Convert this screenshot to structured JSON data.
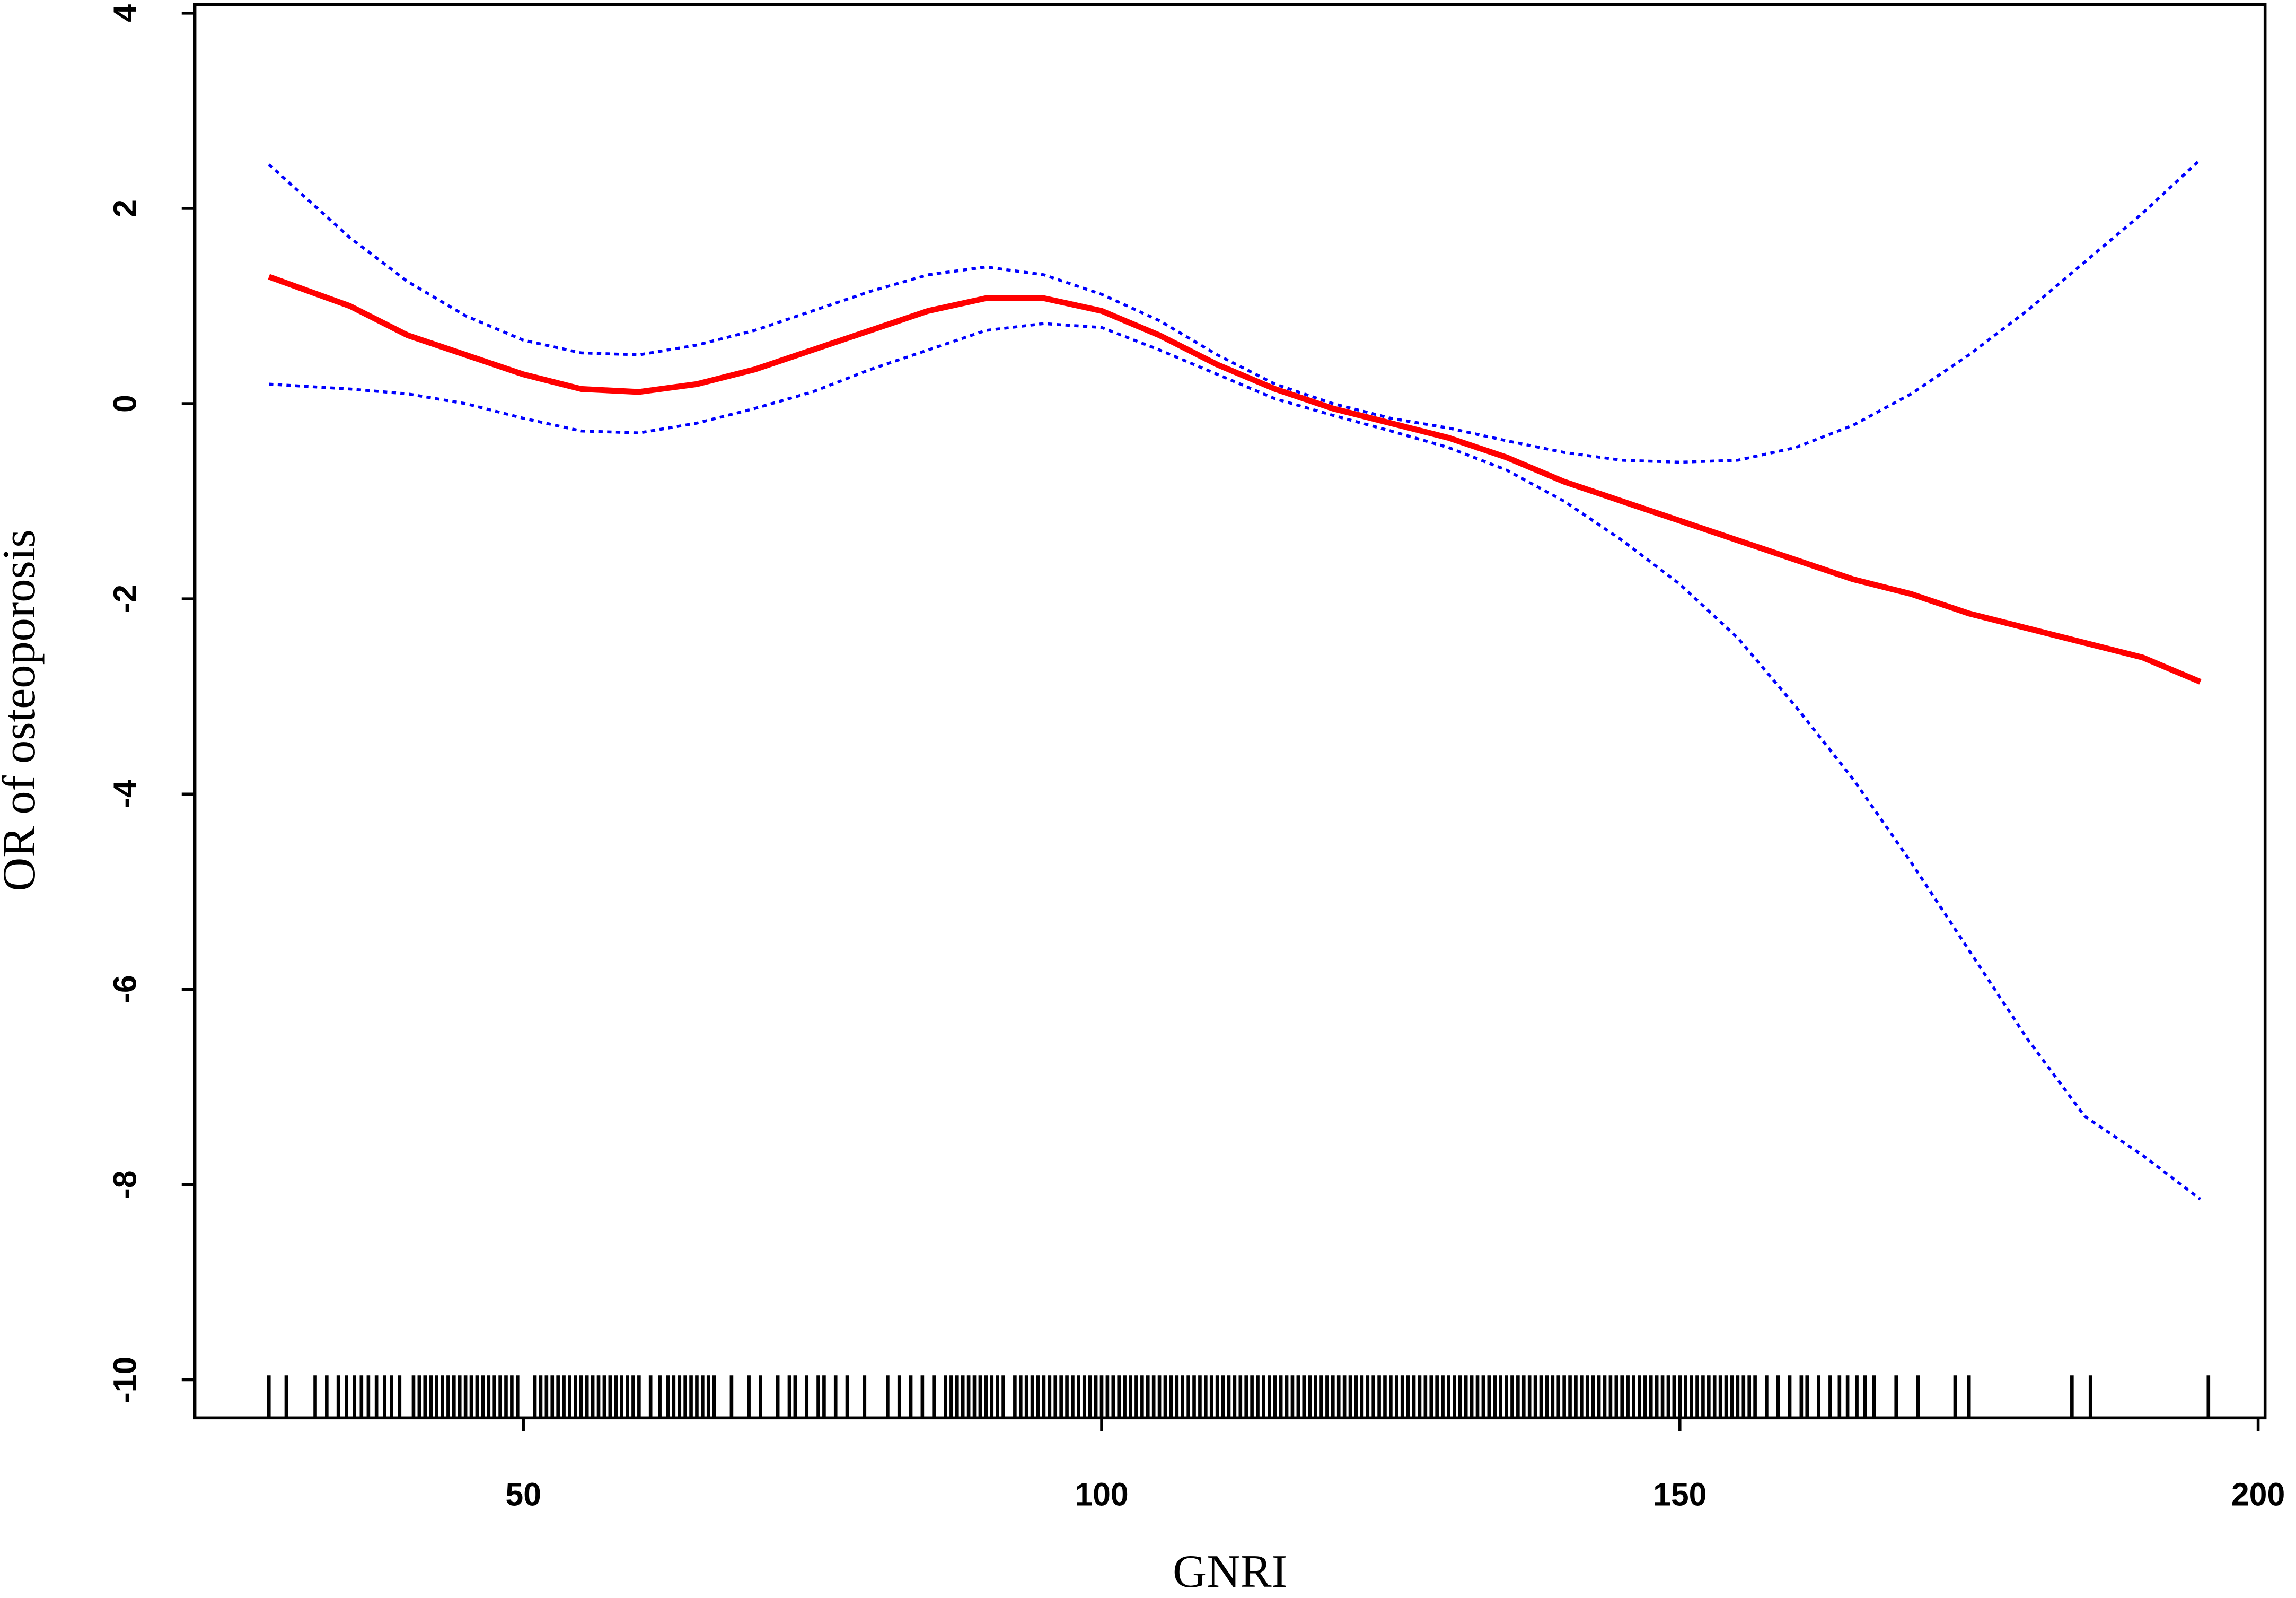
{
  "chart_data": {
    "type": "line",
    "xlabel": "GNRI",
    "ylabel": "OR of osteoporosis",
    "xlim": [
      21.6,
      200.6
    ],
    "ylim": [
      -10.39,
      4.09
    ],
    "xticks": [
      50,
      100,
      150,
      200
    ],
    "yticks": [
      -10,
      -8,
      -6,
      -4,
      -2,
      0,
      2,
      4
    ],
    "x": [
      28,
      35,
      40,
      45,
      50,
      55,
      60,
      65,
      70,
      75,
      80,
      85,
      90,
      95,
      100,
      105,
      110,
      115,
      120,
      125,
      130,
      135,
      140,
      145,
      150,
      155,
      160,
      165,
      170,
      175,
      180,
      185,
      190,
      195
    ],
    "series": [
      {
        "color": "#ff0000",
        "line_style": "solid",
        "values": [
          1.3,
          1.0,
          0.7,
          0.5,
          0.3,
          0.15,
          0.12,
          0.2,
          0.35,
          0.55,
          0.75,
          0.95,
          1.08,
          1.08,
          0.95,
          0.7,
          0.4,
          0.15,
          -0.05,
          -0.2,
          -0.35,
          -0.55,
          -0.8,
          -1.0,
          -1.2,
          -1.4,
          -1.6,
          -1.8,
          -1.95,
          -2.15,
          -2.3,
          -2.45,
          -2.6,
          -2.85
        ]
      },
      {
        "color": "#0000ff",
        "line_style": "dotted",
        "values": [
          2.45,
          1.7,
          1.25,
          0.9,
          0.65,
          0.52,
          0.5,
          0.6,
          0.75,
          0.95,
          1.15,
          1.32,
          1.4,
          1.32,
          1.12,
          0.85,
          0.5,
          0.2,
          0.0,
          -0.15,
          -0.25,
          -0.38,
          -0.5,
          -0.58,
          -0.6,
          -0.58,
          -0.45,
          -0.22,
          0.1,
          0.5,
          0.95,
          1.45,
          1.95,
          2.5
        ]
      },
      {
        "color": "#0000ff",
        "line_style": "dotted",
        "values": [
          0.2,
          0.15,
          0.1,
          0.0,
          -0.15,
          -0.28,
          -0.3,
          -0.2,
          -0.05,
          0.12,
          0.35,
          0.55,
          0.75,
          0.82,
          0.78,
          0.55,
          0.3,
          0.05,
          -0.12,
          -0.28,
          -0.45,
          -0.68,
          -1.0,
          -1.4,
          -1.85,
          -2.4,
          -3.1,
          -3.85,
          -4.7,
          -5.6,
          -6.5,
          -7.3,
          -7.7,
          -8.15
        ]
      }
    ],
    "rug": [
      28,
      29.5,
      32,
      33,
      34,
      34.7,
      35.4,
      36,
      36.6,
      37.3,
      38,
      38.6,
      39.3,
      40.5,
      41,
      41.5,
      42,
      42.5,
      43,
      43.5,
      44,
      44.5,
      45,
      45.5,
      46,
      46.5,
      47,
      47.5,
      48,
      48.5,
      49,
      49.5,
      51,
      51.5,
      52,
      52.5,
      53,
      53.5,
      54,
      54.5,
      55,
      55.5,
      56,
      56.5,
      57,
      57.5,
      58,
      58.5,
      59,
      59.5,
      60,
      61,
      61.8,
      62.5,
      63,
      63.5,
      64,
      64.5,
      65,
      65.5,
      66,
      66.5,
      68,
      69.5,
      70.5,
      72,
      73,
      73.5,
      74.5,
      75.5,
      76,
      77,
      78,
      79.5,
      81.5,
      82.5,
      83.5,
      84.5,
      85.5,
      86.5,
      87,
      87.5,
      88,
      88.5,
      89,
      89.5,
      90,
      90.5,
      91,
      91.5,
      92.5,
      93,
      93.5,
      94,
      94.5,
      95,
      95.5,
      96,
      96.5,
      97,
      97.5,
      98,
      98.5,
      99,
      99.5,
      100,
      100.5,
      101,
      101.5,
      102,
      102.5,
      103,
      103.5,
      104,
      104.5,
      105,
      105.5,
      106,
      106.5,
      107,
      107.5,
      108,
      108.5,
      109,
      109.5,
      110,
      110.5,
      111,
      111.5,
      112,
      112.5,
      113,
      113.5,
      114,
      114.5,
      115,
      115.5,
      116,
      116.5,
      117,
      117.5,
      118,
      118.5,
      119,
      119.5,
      120,
      120.5,
      121,
      121.5,
      122,
      122.5,
      123,
      123.5,
      124,
      124.5,
      125,
      125.5,
      126,
      126.5,
      127,
      127.5,
      128,
      128.5,
      129,
      129.5,
      130,
      130.5,
      131,
      131.5,
      132,
      132.5,
      133,
      133.5,
      134,
      134.5,
      135,
      135.5,
      136,
      136.5,
      137,
      137.5,
      138,
      138.5,
      139,
      139.5,
      140,
      140.5,
      141,
      141.5,
      142,
      142.5,
      143,
      143.5,
      144,
      144.5,
      145,
      145.5,
      146,
      146.5,
      147,
      147.5,
      148,
      148.5,
      149,
      149.5,
      150,
      150.5,
      151,
      151.5,
      152,
      152.5,
      153,
      153.5,
      154,
      154.5,
      155,
      155.5,
      156,
      156.5,
      157.5,
      158.5,
      159.5,
      160.5,
      161,
      162,
      163,
      163.8,
      164.5,
      165.3,
      166,
      166.8,
      168.7,
      170.6,
      173.8,
      175,
      183.9,
      185.5,
      195.7
    ]
  }
}
